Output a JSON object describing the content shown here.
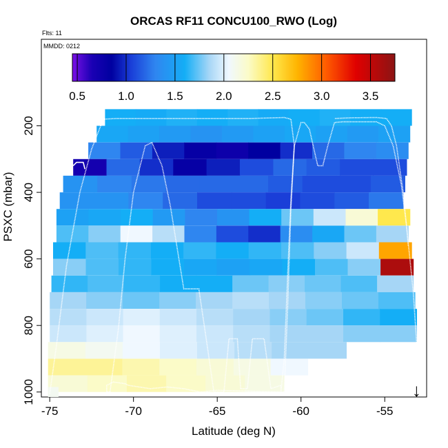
{
  "chart_data": {
    "type": "heatmap",
    "title": "ORCAS RF11 CONCU100_RWO (Log)",
    "corner_labels": {
      "flights": "Flts: 11",
      "date": "MMDD: 0212"
    },
    "xlabel": "Latitude (deg N)",
    "ylabel": "PSXC (mbar)",
    "xlim": [
      -75.5,
      -52.5
    ],
    "ylim": [
      1015,
      -60
    ],
    "x_ticks": [
      -75,
      -70,
      -65,
      -60,
      -55
    ],
    "y_ticks": [
      200,
      400,
      600,
      800,
      1000
    ],
    "colorbar": {
      "range": [
        0.45,
        3.75
      ],
      "ticks": [
        0.5,
        1.0,
        1.5,
        2.0,
        2.5,
        3.0,
        3.5
      ],
      "tick_labels": [
        "0.5",
        "1.0",
        "1.5",
        "2.0",
        "2.5",
        "3.0",
        "3.5"
      ],
      "stops": [
        {
          "v": 0.45,
          "c": "#7a10e6"
        },
        {
          "v": 0.65,
          "c": "#1a00b4"
        },
        {
          "v": 0.85,
          "c": "#0000a0"
        },
        {
          "v": 1.05,
          "c": "#1a3ed8"
        },
        {
          "v": 1.3,
          "c": "#2f86f0"
        },
        {
          "v": 1.6,
          "c": "#14aef6"
        },
        {
          "v": 1.85,
          "c": "#a6d6f6"
        },
        {
          "v": 2.05,
          "c": "#f0f8ff"
        },
        {
          "v": 2.25,
          "c": "#fbfbc8"
        },
        {
          "v": 2.5,
          "c": "#ffe84d"
        },
        {
          "v": 2.75,
          "c": "#ffb400"
        },
        {
          "v": 3.05,
          "c": "#ff5a00"
        },
        {
          "v": 3.35,
          "c": "#e00000"
        },
        {
          "v": 3.75,
          "c": "#8c1414"
        }
      ]
    },
    "layers": [
      {
        "p": 175,
        "lat_from": -71.7,
        "lat_to": -53.4,
        "values": [
          1.6,
          1.58,
          1.62,
          1.6,
          1.62,
          1.58,
          1.6,
          1.62,
          1.6,
          1.6
        ]
      },
      {
        "p": 225,
        "lat_from": -72.2,
        "lat_to": -53.5,
        "values": [
          1.55,
          1.5,
          1.45,
          1.4,
          1.45,
          1.5,
          1.55,
          1.5,
          1.45,
          1.5
        ]
      },
      {
        "p": 275,
        "lat_from": -72.7,
        "lat_to": -53.6,
        "values": [
          1.3,
          1.15,
          0.95,
          0.8,
          0.75,
          0.85,
          1.0,
          1.2,
          1.3,
          1.35
        ]
      },
      {
        "p": 325,
        "lat_from": -73.6,
        "lat_to": -53.7,
        "values": [
          0.7,
          1.2,
          1.0,
          0.8,
          0.95,
          1.1,
          1.2,
          1.15,
          1.1,
          1.1
        ]
      },
      {
        "p": 375,
        "lat_from": -74.2,
        "lat_to": -53.8,
        "values": [
          1.4,
          1.3,
          1.25,
          1.2,
          1.2,
          1.2,
          1.15,
          1.1,
          1.1,
          1.15
        ]
      },
      {
        "p": 425,
        "lat_from": -74.4,
        "lat_to": -53.9,
        "values": [
          1.4,
          1.4,
          1.3,
          1.2,
          1.1,
          1.1,
          1.05,
          1.1,
          1.15,
          1.25
        ]
      },
      {
        "p": 475,
        "lat_from": -74.6,
        "lat_to": -53.5,
        "values": [
          1.5,
          1.55,
          1.6,
          1.45,
          1.3,
          1.4,
          1.6,
          1.75,
          1.95,
          2.2,
          2.5
        ]
      },
      {
        "p": 525,
        "lat_from": -74.6,
        "lat_to": -53.6,
        "values": [
          1.7,
          1.8,
          2.05,
          1.9,
          1.3,
          1.1,
          1.0,
          1.35,
          1.55,
          1.75,
          1.85
        ]
      },
      {
        "p": 575,
        "lat_from": -74.8,
        "lat_to": -53.4,
        "values": [
          1.6,
          1.7,
          1.65,
          1.6,
          1.65,
          1.6,
          1.65,
          1.7,
          1.8,
          1.95,
          2.8
        ]
      },
      {
        "p": 625,
        "lat_from": -74.8,
        "lat_to": -53.3,
        "values": [
          1.8,
          1.7,
          1.65,
          1.6,
          1.55,
          1.5,
          1.55,
          1.6,
          1.7,
          1.8,
          3.6
        ]
      },
      {
        "p": 675,
        "lat_from": -74.9,
        "lat_to": -53.3,
        "values": [
          1.65,
          1.7,
          1.65,
          1.6,
          1.6,
          1.75,
          1.8,
          1.75,
          1.7,
          1.85
        ]
      },
      {
        "p": 725,
        "lat_from": -75.0,
        "lat_to": -53.2,
        "values": [
          1.85,
          1.8,
          1.75,
          1.8,
          1.85,
          1.9,
          1.85,
          1.8,
          1.75,
          1.7
        ]
      },
      {
        "p": 775,
        "lat_from": -75.0,
        "lat_to": -53.1,
        "values": [
          1.9,
          1.95,
          2.0,
          1.95,
          1.9,
          1.85,
          1.8,
          1.75,
          1.65,
          1.6
        ]
      },
      {
        "p": 825,
        "lat_from": -75.0,
        "lat_to": -53.1,
        "values": [
          1.95,
          2.0,
          2.05,
          2.0,
          1.95,
          1.9,
          1.85,
          1.85,
          1.8,
          1.8
        ]
      },
      {
        "p": 875,
        "lat_from": -75.1,
        "lat_to": -57.3,
        "values": [
          2.15,
          2.1,
          2.05,
          2.0,
          1.95,
          1.9,
          1.85,
          1.85
        ]
      },
      {
        "p": 925,
        "lat_from": -75.1,
        "lat_to": -59.6,
        "values": [
          2.35,
          2.35,
          2.3,
          2.25,
          2.2,
          2.15,
          2.05
        ]
      },
      {
        "p": 975,
        "lat_from": -75.1,
        "lat_to": -61.0,
        "values": [
          2.2,
          2.25,
          2.3,
          2.25,
          2.2,
          2.15
        ]
      },
      {
        "p": 1000,
        "lat_from": -75.1,
        "lat_to": -74.5,
        "values": [
          2.1
        ]
      }
    ],
    "flight_track": [
      [
        -75.0,
        1005
      ],
      [
        -74.6,
        860
      ],
      [
        -74.0,
        620
      ],
      [
        -73.2,
        400
      ],
      [
        -72.5,
        270
      ],
      [
        -71.8,
        180
      ],
      [
        -71.0,
        178
      ],
      [
        -69.0,
        178
      ],
      [
        -67.0,
        178
      ],
      [
        -65.0,
        178
      ],
      [
        -63.0,
        178
      ],
      [
        -61.0,
        175
      ],
      [
        -60.6,
        180
      ],
      [
        -60.4,
        260
      ],
      [
        -60.6,
        420
      ],
      [
        -60.8,
        650
      ],
      [
        -61.0,
        900
      ],
      [
        -61.2,
        1000
      ],
      [
        -61.2,
        980
      ],
      [
        -61.8,
        990
      ],
      [
        -62.2,
        840
      ],
      [
        -62.9,
        840
      ],
      [
        -63.2,
        990
      ],
      [
        -63.6,
        990
      ],
      [
        -63.8,
        840
      ],
      [
        -64.3,
        840
      ],
      [
        -64.6,
        1000
      ],
      [
        -65.2,
        1000
      ],
      [
        -65.6,
        860
      ],
      [
        -66.1,
        690
      ],
      [
        -67.0,
        690
      ],
      [
        -67.8,
        440
      ],
      [
        -68.3,
        320
      ],
      [
        -68.9,
        250
      ],
      [
        -69.3,
        260
      ],
      [
        -70.0,
        400
      ],
      [
        -70.5,
        600
      ],
      [
        -70.9,
        810
      ],
      [
        -71.4,
        1000
      ],
      [
        -71.6,
        1000
      ],
      [
        -71.6,
        980
      ],
      [
        -71.2,
        970
      ],
      [
        -70.5,
        975
      ],
      [
        -70.3,
        980
      ],
      [
        -69.0,
        990
      ],
      [
        -68.0,
        985
      ],
      [
        -67.0,
        990
      ],
      [
        -66.0,
        1000
      ],
      [
        -65.0,
        995
      ],
      [
        -61.0,
        1000
      ],
      [
        -60.8,
        750
      ],
      [
        -60.6,
        450
      ],
      [
        -60.4,
        260
      ],
      [
        -60.0,
        190
      ],
      [
        -59.8,
        190
      ],
      [
        -59.5,
        210
      ],
      [
        -59.0,
        320
      ],
      [
        -58.7,
        320
      ],
      [
        -58.4,
        260
      ],
      [
        -58.0,
        190
      ],
      [
        -57.5,
        188
      ],
      [
        -55.5,
        188
      ],
      [
        -55.0,
        200
      ],
      [
        -54.5,
        260
      ],
      [
        -54.0,
        380
      ],
      [
        -53.7,
        500
      ],
      [
        -53.3,
        700
      ],
      [
        -53.1,
        850
      ],
      [
        -53.0,
        920
      ]
    ],
    "flight_track_2": [
      [
        -53.6,
        560
      ],
      [
        -53.7,
        500
      ],
      [
        -53.9,
        400
      ],
      [
        -54.3,
        260
      ],
      [
        -54.6,
        200
      ],
      [
        -54.9,
        178
      ],
      [
        -55.5,
        175
      ],
      [
        -57.0,
        176
      ],
      [
        -58.0,
        178
      ]
    ],
    "left_track": [
      [
        -73.6,
        320
      ],
      [
        -73.4,
        310
      ],
      [
        -73.0,
        310
      ],
      [
        -72.9,
        330
      ]
    ],
    "marker": {
      "symbol": "↓",
      "lat": -53.1,
      "p": 1000
    },
    "styling": {
      "track_color": "#ffffff",
      "background": "#ffffff"
    }
  }
}
